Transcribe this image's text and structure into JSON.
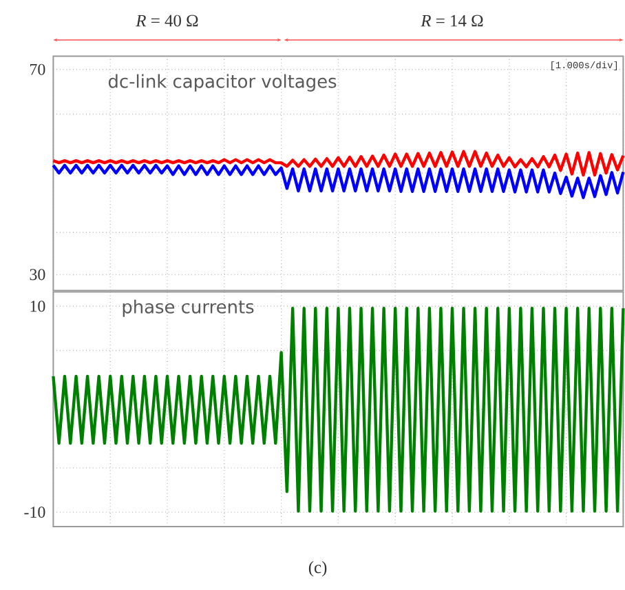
{
  "chart_data": [
    {
      "type": "line",
      "title": "dc-link capacitor voltages",
      "annotations": [
        "*R* = 40 Ω",
        "*R* = 14 Ω",
        "[1.000s/div]"
      ],
      "categories": [
        null,
        null,
        null,
        null,
        null,
        null,
        null,
        null,
        null,
        null,
        null,
        null,
        null,
        null,
        null,
        null,
        null,
        null,
        null,
        null,
        null,
        null,
        null,
        null,
        null,
        null,
        null,
        null,
        null,
        null,
        null,
        null,
        null,
        null,
        null,
        null,
        null,
        null,
        null,
        null,
        null,
        null,
        null,
        null,
        null,
        null,
        null,
        null,
        null,
        null,
        null,
        null,
        null,
        null,
        null,
        null,
        null,
        null,
        null,
        null,
        null,
        null,
        null,
        null,
        null,
        null,
        null,
        null,
        null,
        null,
        null,
        null,
        null,
        null,
        null,
        null,
        null,
        null,
        null,
        null,
        null,
        null,
        null,
        null,
        null,
        null,
        null,
        null,
        null,
        null,
        null,
        null,
        null,
        null,
        null,
        null,
        null,
        null,
        null,
        null,
        null
      ],
      "series": [
        {
          "color": "#0000ff",
          "values": [
            51.3,
            49.8,
            51.3,
            49.8,
            51.3,
            49.8,
            51.3,
            49.8,
            51.3,
            49.8,
            51.3,
            49.8,
            51.3,
            49.8,
            51.3,
            49.8,
            51.3,
            49.8,
            51.3,
            49.8,
            51.2,
            49.5,
            51.2,
            49.5,
            51.2,
            49.5,
            51.2,
            49.5,
            51.2,
            49.5,
            51.2,
            49.5,
            51.2,
            49.5,
            51.2,
            49.5,
            51.2,
            49.5,
            51.2,
            49.5,
            50.8,
            46.8,
            50.6,
            46.3,
            50.6,
            46.3,
            50.6,
            46.3,
            50.6,
            46.3,
            50.6,
            46.3,
            50.6,
            46.3,
            50.6,
            46.3,
            50.6,
            46.3,
            50.6,
            46.3,
            50.6,
            46.2,
            50.6,
            46.2,
            50.6,
            46.2,
            50.6,
            46.2,
            50.6,
            46.2,
            50.6,
            46.2,
            50.6,
            46.2,
            50.6,
            46.2,
            50.6,
            46.2,
            50.6,
            46.2,
            50.4,
            46.1,
            50.4,
            46.1,
            50.4,
            46.1,
            50.4,
            46.1,
            49.8,
            45.8,
            49.0,
            45.3,
            48.8,
            45.0,
            48.8,
            45.2,
            49.3,
            45.6,
            49.9,
            45.9,
            50.0
          ]
        },
        {
          "color": "#ff0000",
          "values": [
            52.2,
            51.8,
            52.2,
            51.8,
            52.2,
            51.8,
            52.2,
            51.8,
            52.2,
            51.8,
            52.2,
            51.8,
            52.2,
            51.8,
            52.2,
            51.8,
            52.2,
            51.8,
            52.2,
            51.8,
            52.2,
            51.8,
            52.2,
            51.8,
            52.2,
            51.8,
            52.2,
            51.8,
            52.2,
            51.8,
            52.4,
            51.8,
            52.4,
            51.8,
            52.4,
            51.8,
            52.4,
            51.8,
            52.4,
            51.8,
            51.8,
            51.1,
            52.3,
            51.1,
            52.4,
            51.1,
            52.5,
            51.1,
            52.6,
            51.1,
            52.8,
            51.1,
            52.9,
            51.1,
            53.0,
            51.1,
            53.1,
            51.1,
            53.3,
            51.1,
            53.5,
            51.1,
            53.5,
            51.1,
            53.6,
            51.1,
            53.7,
            51.1,
            53.8,
            51.1,
            53.9,
            51.1,
            54.0,
            51.1,
            54.0,
            51.1,
            53.7,
            51.1,
            53.3,
            51.1,
            52.8,
            51.0,
            52.4,
            51.0,
            52.6,
            51.0,
            53.0,
            51.0,
            53.3,
            50.3,
            53.5,
            49.6,
            53.7,
            49.4,
            53.8,
            49.4,
            53.6,
            49.8,
            53.4,
            50.4,
            53.2
          ]
        }
      ],
      "ylim": [
        26.9,
        72.6
      ],
      "yticks": [
        30,
        {
          "value": 38.2,
          "label": null
        },
        {
          "value": 49.8,
          "label": null
        },
        {
          "value": 61.3,
          "label": null
        },
        70
      ],
      "grid": true,
      "tick_labels": "y",
      "marker": "none",
      "line_style": "solid"
    },
    {
      "type": "line",
      "title": "phase currents",
      "annotations": [
        "(c)"
      ],
      "categories": [
        null,
        null,
        null,
        null,
        null,
        null,
        null,
        null,
        null,
        null,
        null,
        null,
        null,
        null,
        null,
        null,
        null,
        null,
        null,
        null,
        null,
        null,
        null,
        null,
        null,
        null,
        null,
        null,
        null,
        null,
        null,
        null,
        null,
        null,
        null,
        null,
        null,
        null,
        null,
        null,
        null,
        null,
        null,
        null,
        null,
        null,
        null,
        null,
        null,
        null,
        null,
        null,
        null,
        null,
        null,
        null,
        null,
        null,
        null,
        null,
        null,
        null,
        null,
        null,
        null,
        null,
        null,
        null,
        null,
        null,
        null,
        null,
        null,
        null,
        null,
        null,
        null,
        null,
        null,
        null,
        null,
        null,
        null,
        null,
        null,
        null,
        null,
        null,
        null,
        null,
        null,
        null,
        null,
        null,
        null,
        null,
        null,
        null,
        null,
        null,
        null
      ],
      "series": [
        {
          "color": "#008000",
          "values": [
            3.2,
            -3.3,
            3.2,
            -3.3,
            3.2,
            -3.3,
            3.2,
            -3.3,
            3.2,
            -3.3,
            3.2,
            -3.3,
            3.2,
            -3.3,
            3.2,
            -3.3,
            3.2,
            -3.3,
            3.2,
            -3.3,
            3.2,
            -3.3,
            3.2,
            -3.3,
            3.2,
            -3.3,
            3.2,
            -3.3,
            3.2,
            -3.3,
            3.2,
            -3.3,
            3.2,
            -3.3,
            3.2,
            -3.3,
            3.2,
            -3.3,
            3.2,
            -3.3,
            5.5,
            -8.0,
            9.8,
            -9.9,
            9.8,
            -9.9,
            9.8,
            -9.9,
            9.8,
            -9.9,
            9.8,
            -9.9,
            9.8,
            -9.9,
            9.8,
            -9.9,
            9.8,
            -9.9,
            9.8,
            -9.9,
            9.8,
            -9.9,
            9.8,
            -9.9,
            9.8,
            -9.9,
            9.8,
            -9.9,
            9.8,
            -9.9,
            9.8,
            -9.9,
            9.8,
            -9.9,
            9.8,
            -9.9,
            9.8,
            -9.9,
            9.8,
            -9.9,
            9.8,
            -9.9,
            9.8,
            -9.9,
            9.8,
            -9.9,
            9.8,
            -9.9,
            9.8,
            -9.9,
            9.8,
            -9.9,
            9.8,
            -9.9,
            9.8,
            -9.9,
            9.8,
            -9.9,
            9.8,
            -9.9,
            9.8
          ]
        }
      ],
      "ylim": [
        -11.4,
        11.4
      ],
      "yticks": [
        -10,
        {
          "value": -5.7,
          "label": null
        },
        {
          "value": 0,
          "label": null
        },
        {
          "value": 5.7,
          "label": null
        },
        10
      ],
      "grid": true,
      "tick_labels": "y",
      "marker": "none",
      "line_style": "solid"
    }
  ]
}
